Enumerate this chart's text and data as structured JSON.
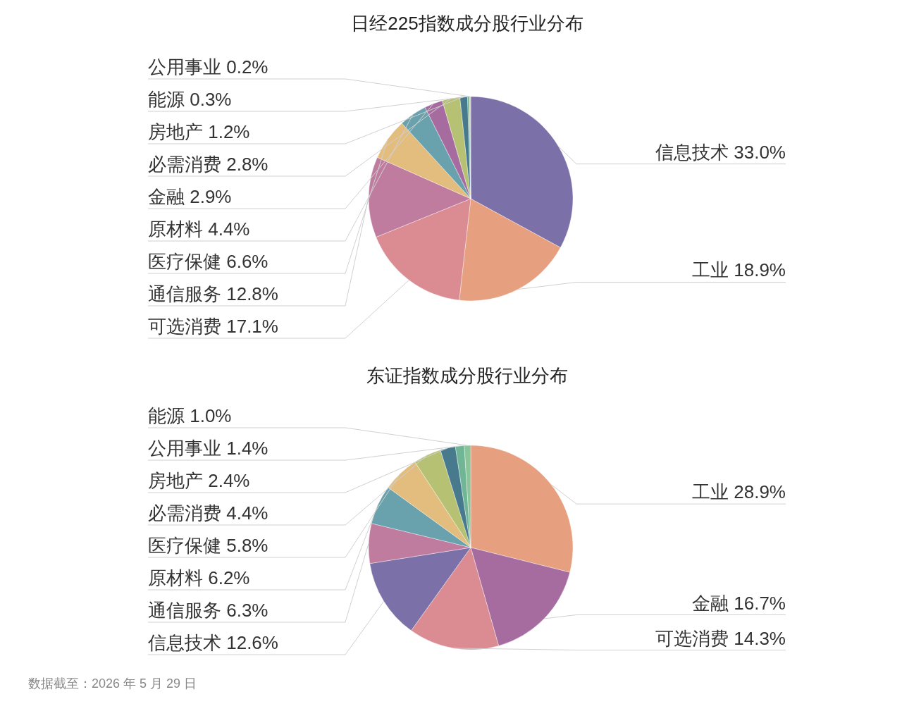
{
  "chart_data": [
    {
      "type": "pie",
      "title": "日经225指数成分股行业分布",
      "categories": [
        "信息技术",
        "工业",
        "可选消费",
        "通信服务",
        "医疗保健",
        "原材料",
        "金融",
        "必需消费",
        "房地产",
        "能源",
        "公用事业"
      ],
      "values": [
        33.0,
        18.9,
        17.1,
        12.8,
        6.6,
        4.4,
        2.9,
        2.8,
        1.2,
        0.3,
        0.2
      ],
      "value_labels": [
        "33.0%",
        "18.9%",
        "17.1%",
        "12.8%",
        "6.6%",
        "4.4%",
        "2.9%",
        "2.8%",
        "1.2%",
        "0.3%",
        "0.2%"
      ],
      "colors": [
        "#7b70a8",
        "#e6a07f",
        "#db8b92",
        "#c07c9f",
        "#e2bd7e",
        "#69a1ad",
        "#a76c9f",
        "#b6c173",
        "#487a8d",
        "#6fb596",
        "#c8d89a"
      ],
      "legend": false
    },
    {
      "type": "pie",
      "title": "东证指数成分股行业分布",
      "categories": [
        "工业",
        "金融",
        "可选消费",
        "信息技术",
        "通信服务",
        "原材料",
        "医疗保健",
        "必需消费",
        "房地产",
        "公用事业",
        "能源"
      ],
      "values": [
        28.9,
        16.7,
        14.3,
        12.6,
        6.3,
        6.2,
        5.8,
        4.4,
        2.4,
        1.4,
        1.0
      ],
      "value_labels": [
        "28.9%",
        "16.7%",
        "14.3%",
        "12.6%",
        "6.3%",
        "6.2%",
        "5.8%",
        "4.4%",
        "2.4%",
        "1.4%",
        "1.0%"
      ],
      "colors": [
        "#e6a07f",
        "#a76c9f",
        "#db8b92",
        "#7b70a8",
        "#c07c9f",
        "#69a1ad",
        "#e2bd7e",
        "#b6c173",
        "#487a8d",
        "#6fb596",
        "#8cc49a"
      ],
      "legend": false,
      "annotations": [
        "数据截至：2026 年 5 月 29 日"
      ]
    }
  ]
}
